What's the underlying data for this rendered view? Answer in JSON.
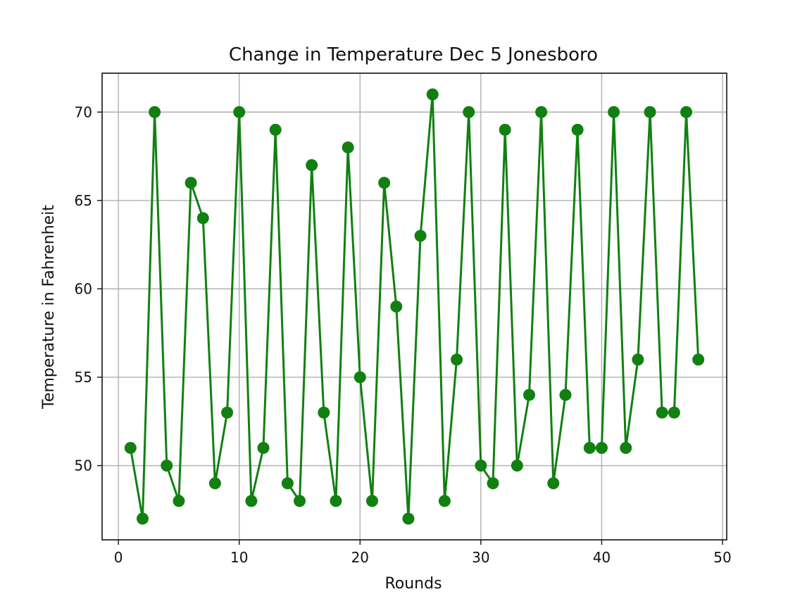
{
  "chart_data": {
    "type": "line",
    "title": "Change in Temperature Dec 5 Jonesboro",
    "xlabel": "Rounds",
    "ylabel": "Temperature in Fahrenheit",
    "xlim": [
      -1.35,
      50.35
    ],
    "ylim": [
      45.8,
      72.2
    ],
    "xticks": [
      0,
      10,
      20,
      30,
      40,
      50
    ],
    "yticks": [
      50,
      55,
      60,
      65,
      70
    ],
    "grid": true,
    "legend": "none",
    "color": "#118011",
    "marker": "circle",
    "x": [
      1,
      2,
      3,
      4,
      5,
      6,
      7,
      8,
      9,
      10,
      11,
      12,
      13,
      14,
      15,
      16,
      17,
      18,
      19,
      20,
      21,
      22,
      23,
      24,
      25,
      26,
      27,
      28,
      29,
      30,
      31,
      32,
      33,
      34,
      35,
      36,
      37,
      38,
      39,
      40,
      41,
      42,
      43,
      44,
      45,
      46,
      47,
      48
    ],
    "y": [
      51,
      47,
      70,
      50,
      48,
      66,
      64,
      49,
      53,
      70,
      48,
      51,
      69,
      49,
      48,
      67,
      53,
      48,
      68,
      55,
      48,
      66,
      59,
      47,
      63,
      71,
      48,
      56,
      70,
      50,
      49,
      69,
      50,
      54,
      70,
      49,
      54,
      69,
      51,
      51,
      70,
      51,
      56,
      70,
      53,
      53,
      70,
      56
    ]
  }
}
